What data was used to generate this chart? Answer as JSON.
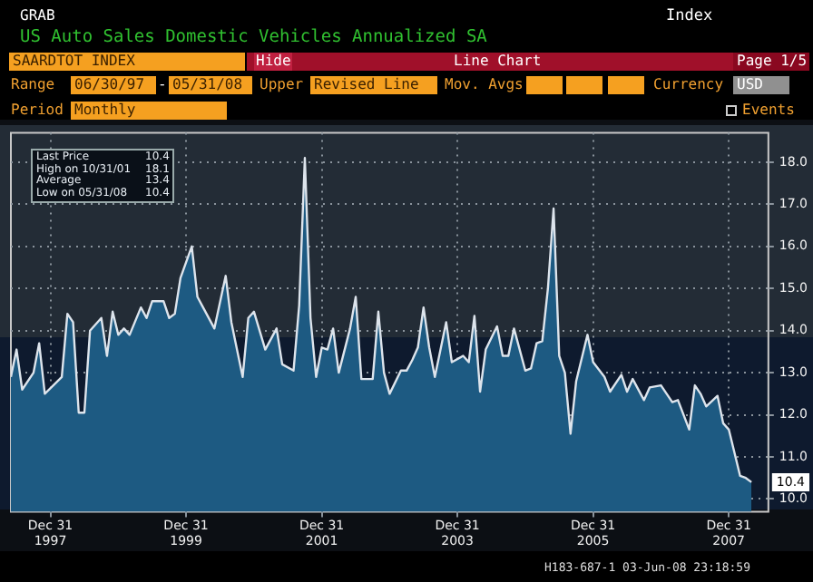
{
  "chart_data": {
    "type": "area",
    "title": "US Auto Sales Domestic Vehicles Annualized SA",
    "x": [
      "1997-06",
      "1997-07",
      "1997-08",
      "1997-10",
      "1997-11",
      "1997-12",
      "1998-03",
      "1998-04",
      "1998-05",
      "1998-06",
      "1998-07",
      "1998-08",
      "1998-10",
      "1998-11",
      "1998-12",
      "1999-01",
      "1999-02",
      "1999-03",
      "1999-05",
      "1999-06",
      "1999-07",
      "1999-09",
      "1999-10",
      "1999-11",
      "1999-12",
      "2000-02",
      "2000-03",
      "2000-04",
      "2000-06",
      "2000-08",
      "2000-09",
      "2000-11",
      "2000-12",
      "2001-01",
      "2001-03",
      "2001-05",
      "2001-06",
      "2001-08",
      "2001-09",
      "2001-10",
      "2001-11",
      "2001-12",
      "2002-01",
      "2002-02",
      "2002-03",
      "2002-04",
      "2002-06",
      "2002-07",
      "2002-08",
      "2002-10",
      "2002-11",
      "2002-12",
      "2003-01",
      "2003-03",
      "2003-04",
      "2003-05",
      "2003-06",
      "2003-07",
      "2003-08",
      "2003-09",
      "2003-11",
      "2003-12",
      "2004-02",
      "2004-03",
      "2004-04",
      "2004-05",
      "2004-06",
      "2004-08",
      "2004-09",
      "2004-10",
      "2004-11",
      "2005-01",
      "2005-02",
      "2005-03",
      "2005-04",
      "2005-05",
      "2005-06",
      "2005-07",
      "2005-08",
      "2005-09",
      "2005-10",
      "2005-12",
      "2006-01",
      "2006-03",
      "2006-04",
      "2006-06",
      "2006-07",
      "2006-08",
      "2006-10",
      "2006-11",
      "2007-01",
      "2007-02",
      "2007-03",
      "2007-04",
      "2007-06",
      "2007-07",
      "2007-08",
      "2007-09",
      "2007-11",
      "2007-12",
      "2008-01",
      "2008-03",
      "2008-04",
      "2008-05"
    ],
    "series": [
      {
        "color": "#dde4ec",
        "values": [
          12.9,
          13.55,
          12.6,
          13.0,
          13.7,
          12.5,
          12.9,
          14.4,
          14.2,
          12.05,
          12.05,
          14.0,
          14.3,
          13.4,
          14.45,
          13.9,
          14.05,
          13.9,
          14.55,
          14.3,
          14.7,
          14.7,
          14.3,
          14.4,
          15.25,
          16.0,
          14.8,
          14.55,
          14.05,
          15.3,
          14.2,
          12.9,
          14.3,
          14.45,
          13.55,
          14.05,
          13.2,
          13.05,
          14.6,
          18.1,
          14.3,
          12.9,
          13.6,
          13.55,
          14.05,
          13.0,
          14.05,
          14.8,
          12.85,
          12.85,
          14.45,
          13.0,
          12.5,
          13.05,
          13.05,
          13.3,
          13.6,
          14.55,
          13.6,
          12.9,
          14.2,
          13.25,
          13.4,
          13.25,
          14.35,
          12.55,
          13.55,
          14.1,
          13.4,
          13.4,
          14.05,
          13.05,
          13.1,
          13.7,
          13.75,
          15.0,
          16.9,
          13.4,
          13.0,
          11.55,
          12.8,
          13.9,
          13.25,
          12.9,
          12.55,
          12.95,
          12.55,
          12.85,
          12.35,
          12.65,
          12.7,
          12.5,
          12.3,
          12.35,
          11.65,
          12.7,
          12.5,
          12.2,
          12.45,
          11.8,
          11.65,
          10.55,
          10.5,
          10.4
        ]
      }
    ],
    "xlim": [
      "1997-06",
      "2008-08"
    ],
    "xticks": [
      {
        "value": "1997-12-31",
        "label": "Dec 31\n1997"
      },
      {
        "value": "1999-12-31",
        "label": "Dec 31\n1999"
      },
      {
        "value": "2001-12-31",
        "label": "Dec 31\n2001"
      },
      {
        "value": "2003-12-31",
        "label": "Dec 31\n2003"
      },
      {
        "value": "2005-12-31",
        "label": "Dec 31\n2005"
      },
      {
        "value": "2007-12-31",
        "label": "Dec 31\n2007"
      }
    ],
    "ylim": [
      9.7,
      18.7
    ],
    "yticks": [
      {
        "value": 10,
        "label": "10.0"
      },
      {
        "value": 11,
        "label": "11.0"
      },
      {
        "value": 12,
        "label": "12.0"
      },
      {
        "value": 13,
        "label": "13.0"
      },
      {
        "value": 14,
        "label": "14.0"
      },
      {
        "value": 15,
        "label": "15.0"
      },
      {
        "value": 16,
        "label": "16.0"
      },
      {
        "value": 17,
        "label": "17.0"
      },
      {
        "value": 18,
        "label": "18.0"
      }
    ],
    "grid": true,
    "line_style": "solid",
    "marker": "none",
    "legend": false,
    "annotations": [
      "GRAB",
      "Index",
      "SAARDTOT INDEX",
      "Hide",
      "Line Chart",
      "Page 1/5",
      "Range",
      "06/30/97",
      "-",
      "05/31/08",
      "Upper",
      "Revised Line",
      "Mov. Avgs",
      "Currency",
      "USD",
      "Period",
      "Monthly",
      "Events",
      "Last Price",
      "10.4",
      "High on 10/31/01",
      "18.1",
      "Average",
      "13.4",
      "Low on 05/31/08",
      "10.4",
      {
        "text": "10.4",
        "x": "2008-05",
        "y": 10.4
      },
      "H183-687-1 03-Jun-08 23:18:59"
    ]
  }
}
